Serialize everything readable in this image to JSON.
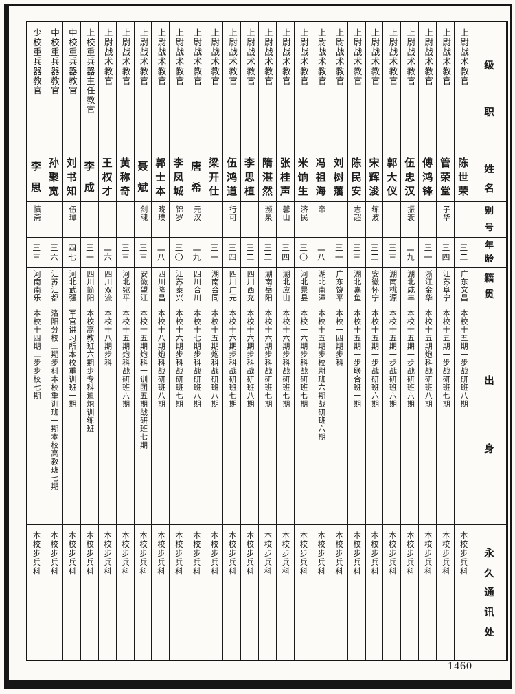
{
  "page": {
    "number": "1460"
  },
  "headers": {
    "rank": "级职",
    "name": "姓名",
    "alias": "别号",
    "age": "年龄",
    "native": "籍贯",
    "background": "出身",
    "contact": "永久通讯处"
  },
  "people": [
    {
      "rank": "上尉战术教官",
      "name": "陈世荣",
      "alias": "",
      "age": "三二",
      "native": "广东文昌",
      "background": "本校十五期一步战研班八期",
      "contact": "本校步兵科"
    },
    {
      "rank": "上尉战术教官",
      "name": "管荣堂",
      "alias": "子华",
      "age": "三四",
      "native": "江苏阜宁",
      "background": "本校十五期一步战研班七期",
      "contact": "本校步兵科"
    },
    {
      "rank": "上尉战术教官",
      "name": "傅鸿锋",
      "alias": "",
      "age": "三一",
      "native": "浙江金华",
      "background": "本校十五期炮科战研班八期",
      "contact": "本校步兵科"
    },
    {
      "rank": "上尉战术教官",
      "name": "伍忠汉",
      "alias": "振寰",
      "age": "二九",
      "native": "湖北咸丰",
      "background": "本校十五期一步战研班六期",
      "contact": "本校步兵科"
    },
    {
      "rank": "上尉战术教官",
      "name": "郭大仪",
      "alias": "",
      "age": "三三",
      "native": "湖南桃源",
      "background": "本校十五期一步战研班六期",
      "contact": "本校步兵科"
    },
    {
      "rank": "上尉战术教官",
      "name": "宋辉浚",
      "alias": "练波",
      "age": "三二",
      "native": "安徽怀宁",
      "background": "本校十五期一步战研班六期",
      "contact": "本校步兵科"
    },
    {
      "rank": "上尉战术教官",
      "name": "陈民安",
      "alias": "志超",
      "age": "三三",
      "native": "湖北嘉鱼",
      "background": "本校十五期一步联合班一期",
      "contact": "本校步兵科"
    },
    {
      "rank": "上尉战术教官",
      "name": "刘树藩",
      "alias": "",
      "age": "三一",
      "native": "广东饶平",
      "background": "本校一四期步科",
      "contact": "本校步兵科"
    },
    {
      "rank": "上尉战术教官",
      "name": "冯祖海",
      "alias": "帝",
      "age": "二八",
      "native": "湖北南漳",
      "background": "本校十五期步校尉班六期战研班六期",
      "contact": "本校步兵科"
    },
    {
      "rank": "上尉战术教官",
      "name": "米饷生",
      "alias": "济民",
      "age": "三〇",
      "native": "河北景县",
      "background": "本校一六期步科战研班七期",
      "contact": "本校步兵科"
    },
    {
      "rank": "上尉战术教官",
      "name": "张桂声",
      "alias": "馨山",
      "age": "三四",
      "native": "湖北应山",
      "background": "本校十六期步科战研班七期",
      "contact": "本校步兵科"
    },
    {
      "rank": "上尉战术教官",
      "name": "隋湛然",
      "alias": "濒泉",
      "age": "三二",
      "native": "湖南岳阳",
      "background": "本校十六期步科战研班七期",
      "contact": "本校步兵科"
    },
    {
      "rank": "上尉战术教官",
      "name": "李思植",
      "alias": "",
      "age": "三二",
      "native": "四川西充",
      "background": "本校十六期步科战研班八期",
      "contact": "本校步兵科"
    },
    {
      "rank": "上尉战术教官",
      "name": "伍鸿道",
      "alias": "行可",
      "age": "三四",
      "native": "四川广元",
      "background": "本校十六期步科战研班七期",
      "contact": "本校步兵科"
    },
    {
      "rank": "上尉战术教官",
      "name": "梁开仕",
      "alias": "",
      "age": "三一",
      "native": "湖南会同",
      "background": "本校十五期炮科战研班八期",
      "contact": "本校步兵科"
    },
    {
      "rank": "上尉战术教官",
      "name": "唐希",
      "alias": "元汉",
      "age": "二九",
      "native": "四川合川",
      "background": "本校十七期步科战研班八期",
      "contact": "本校步兵科"
    },
    {
      "rank": "上尉战术教官",
      "name": "李凤城",
      "alias": "锦罗",
      "age": "三〇",
      "native": "江苏泰兴",
      "background": "本校十六期步科战研班七期",
      "contact": "本校步兵科"
    },
    {
      "rank": "上尉战术教官",
      "name": "郭士本",
      "alias": "晓璞",
      "age": "二八",
      "native": "四川隆昌",
      "background": "本校十八期炮科战研班八期",
      "contact": "本校步兵科"
    },
    {
      "rank": "上尉战术教官",
      "name": "聂斌",
      "alias": "剑魂",
      "age": "三三",
      "native": "安徽望江",
      "background": "本校十五期炮科干训团五期战研班七期",
      "contact": "本校步兵科"
    },
    {
      "rank": "上尉战术教官",
      "name": "黄称奇",
      "alias": "",
      "age": "三三",
      "native": "河北宛平",
      "background": "本校十五期炮科战研班六期",
      "contact": "本校步兵科"
    },
    {
      "rank": "上尉战术教官",
      "name": "王权才",
      "alias": "",
      "age": "二六",
      "native": "四川双流",
      "background": "本校十八期步科",
      "contact": "本校步兵科"
    },
    {
      "rank": "上校重兵器主任教官",
      "name": "李成",
      "alias": "",
      "age": "三一",
      "native": "四川简阳",
      "background": "本校高教班六期步专科迫炮训练班",
      "contact": "本校步兵科"
    },
    {
      "rank": "中校重兵器教官",
      "name": "刘书知",
      "alias": "伍璋",
      "age": "四七",
      "native": "河北武强",
      "background": "军官讲习所本校重训班一期",
      "contact": "本校步兵科"
    },
    {
      "rank": "中校重兵器教官",
      "name": "孙聚宽",
      "alias": "",
      "age": "三六",
      "native": "江苏江都",
      "background": "洛阳分校二期步科本校重训班一期本校高教班七期",
      "contact": "本校步兵科"
    },
    {
      "rank": "少校重兵器教官",
      "name": "李思",
      "alias": "慎斋",
      "age": "三三",
      "native": "河南南乐",
      "background": "本校十四期二步步校七期",
      "contact": "本校步兵科"
    }
  ]
}
